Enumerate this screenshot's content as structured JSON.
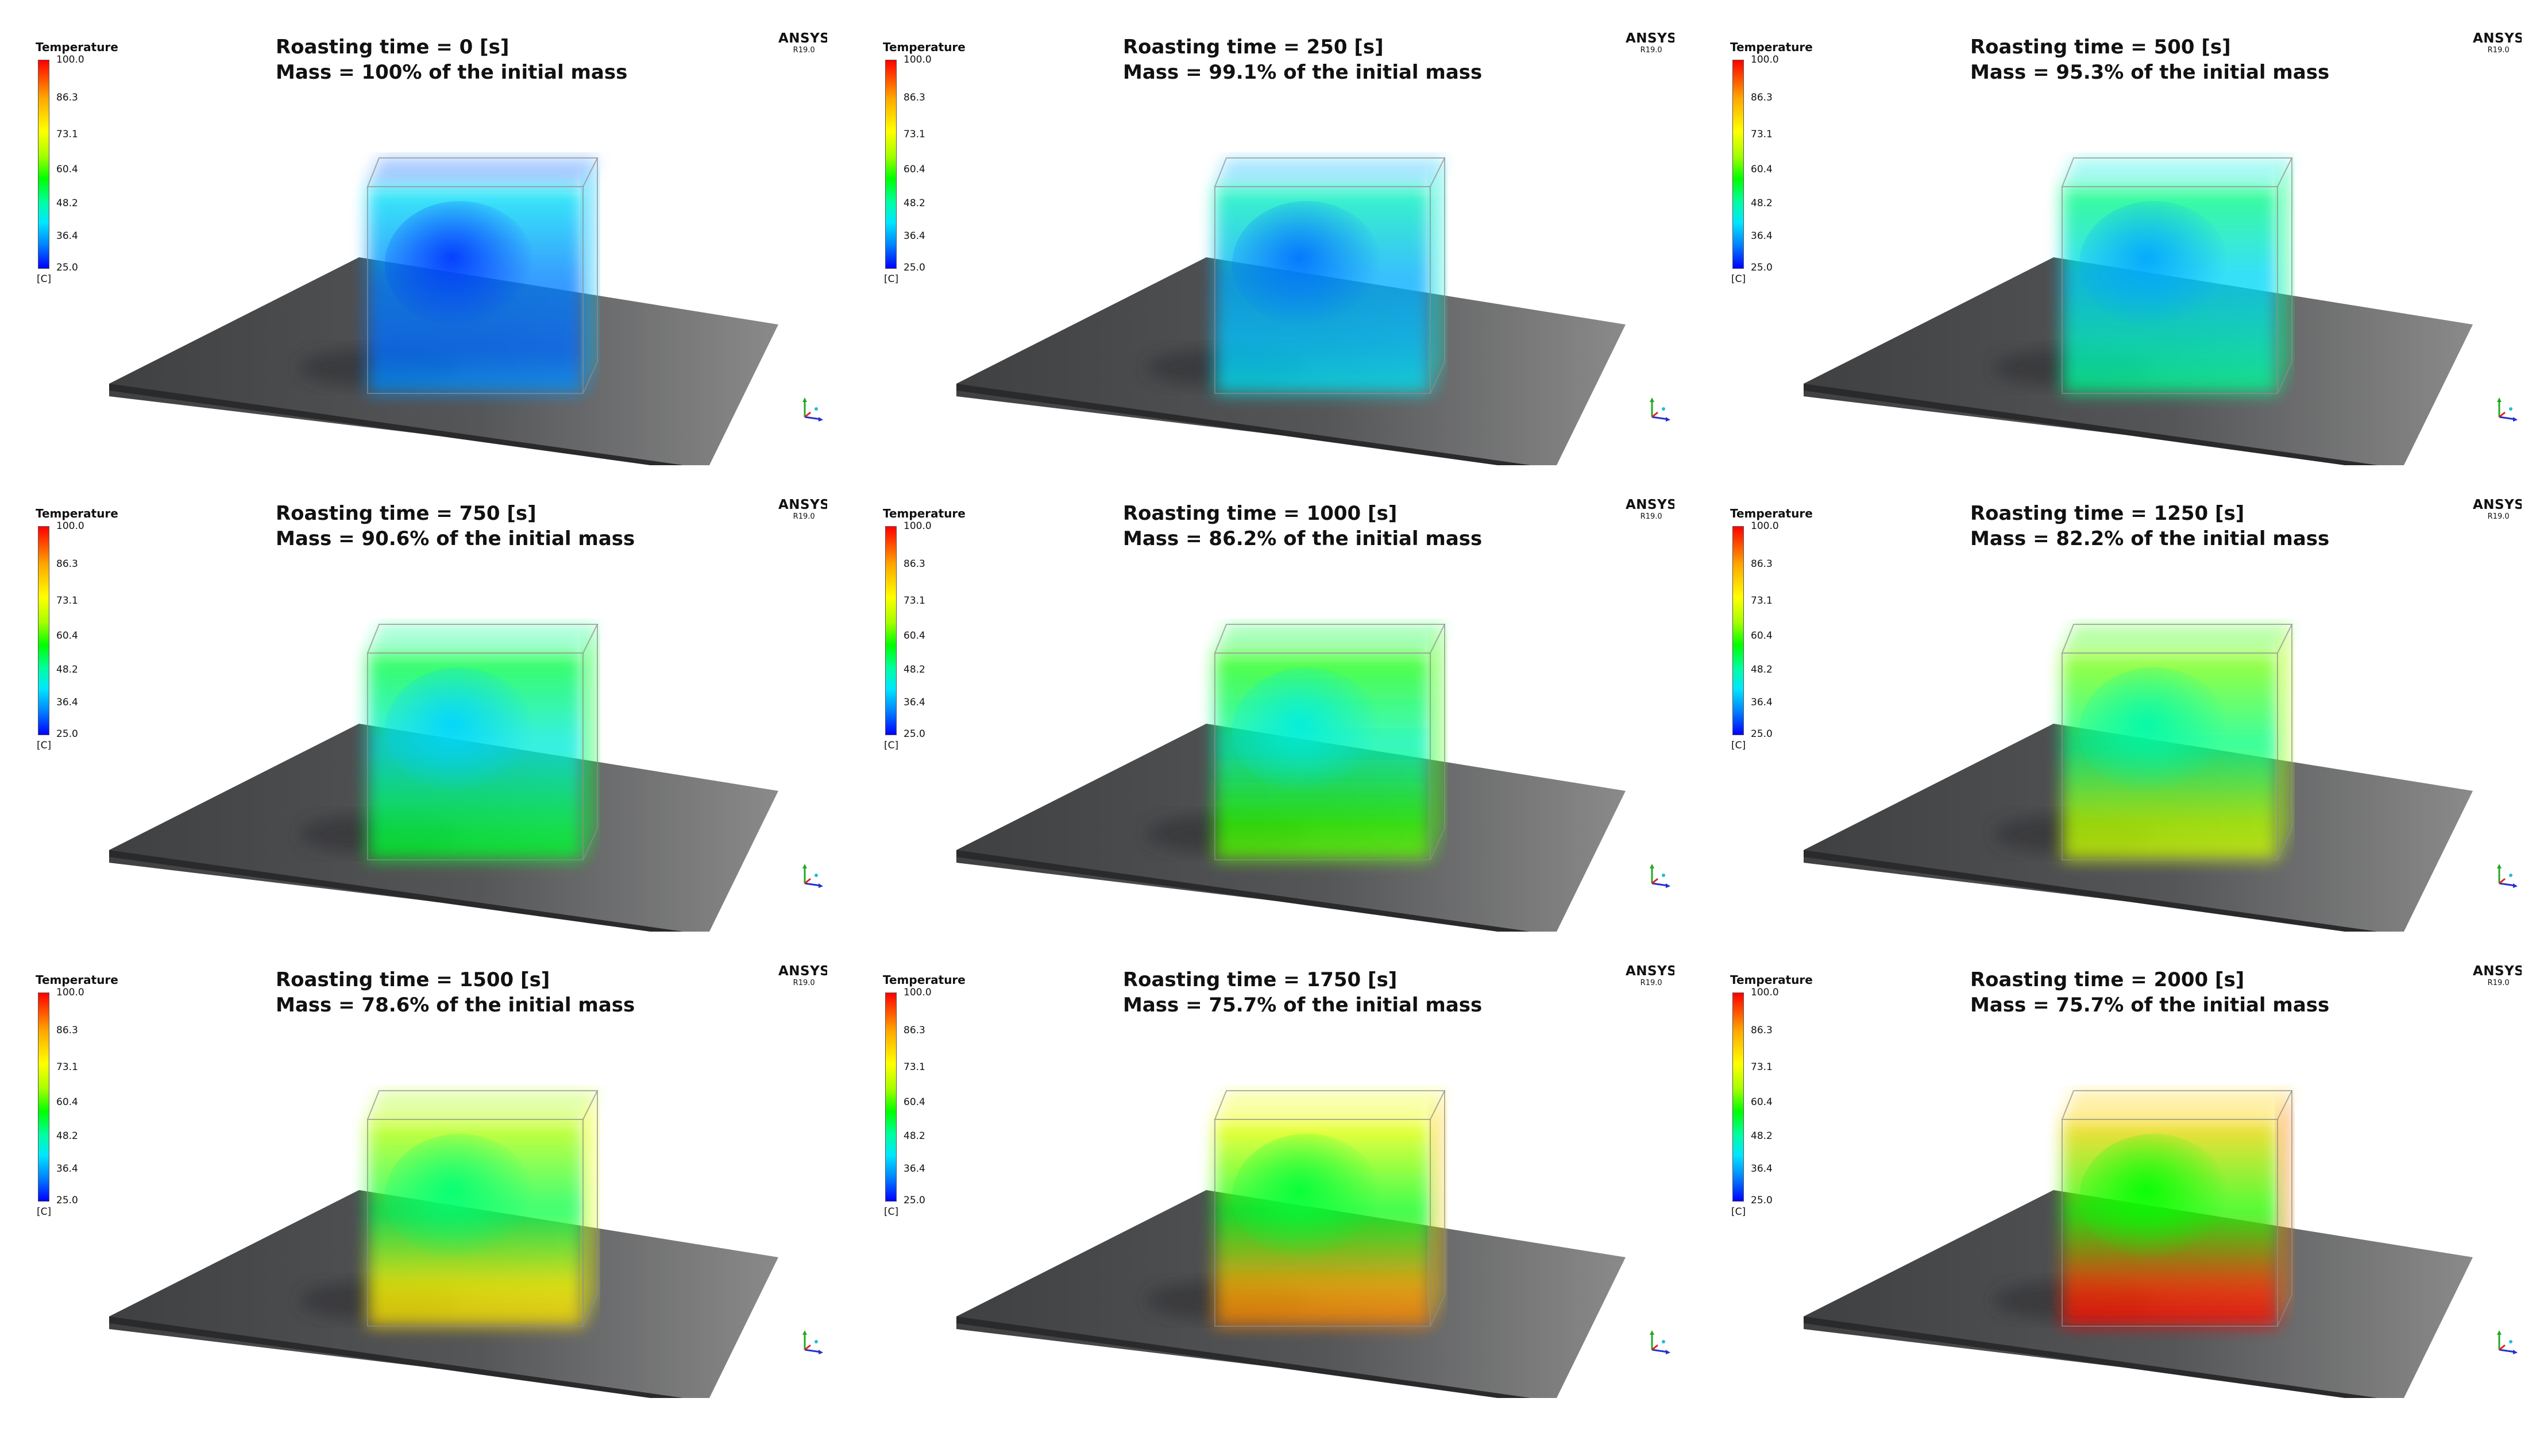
{
  "colorbar": {
    "title": "Temperature",
    "unit": "[C]",
    "ticks": [
      "100.0",
      "86.3",
      "73.1",
      "60.4",
      "48.2",
      "36.4",
      "25.0"
    ],
    "tick_values": [
      100.0,
      86.3,
      73.1,
      60.4,
      48.2,
      36.4,
      25.0
    ],
    "range": [
      25.0,
      100.0
    ]
  },
  "logo": {
    "main": "ANSYS",
    "sub": "R19.0"
  },
  "panels": [
    {
      "time": "Roasting time = 0 [s]",
      "mass": "Mass = 100% of the initial mass",
      "heat": 0.0
    },
    {
      "time": "Roasting time = 250 [s]",
      "mass": "Mass = 99.1% of the initial mass",
      "heat": 0.125
    },
    {
      "time": "Roasting time = 500 [s]",
      "mass": "Mass = 95.3% of the initial mass",
      "heat": 0.25
    },
    {
      "time": "Roasting time = 750 [s]",
      "mass": "Mass = 90.6% of the initial mass",
      "heat": 0.375
    },
    {
      "time": "Roasting time = 1000 [s]",
      "mass": "Mass = 86.2% of the initial mass",
      "heat": 0.5
    },
    {
      "time": "Roasting time = 1250 [s]",
      "mass": "Mass = 82.2% of the initial mass",
      "heat": 0.625
    },
    {
      "time": "Roasting time = 1500 [s]",
      "mass": "Mass = 78.6% of the initial mass",
      "heat": 0.75
    },
    {
      "time": "Roasting time = 1750 [s]",
      "mass": "Mass = 75.7% of the initial mass",
      "heat": 0.875
    },
    {
      "time": "Roasting time = 2000 [s]",
      "mass": "Mass = 75.7% of the initial mass",
      "heat": 1.0
    }
  ],
  "colors": {
    "plate_dark": "#3f4042",
    "plate_light": "#8a8a8a",
    "cold": "#0010ff",
    "hot": "#ff1a00"
  }
}
